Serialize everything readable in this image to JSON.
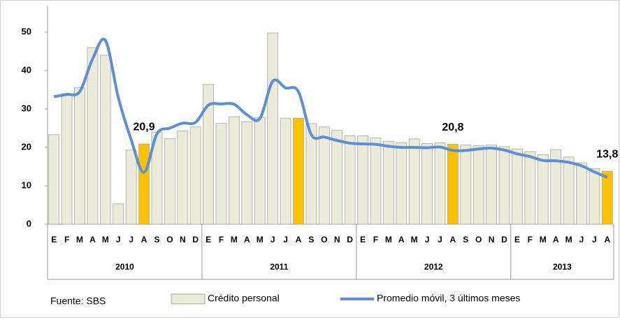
{
  "chart_data": {
    "type": "bar-line",
    "categories": [
      "E",
      "F",
      "M",
      "A",
      "M",
      "J",
      "J",
      "A",
      "S",
      "O",
      "N",
      "D",
      "E",
      "F",
      "M",
      "A",
      "M",
      "J",
      "J",
      "A",
      "S",
      "O",
      "N",
      "D",
      "E",
      "F",
      "M",
      "A",
      "M",
      "J",
      "J",
      "A",
      "S",
      "O",
      "N",
      "D",
      "E",
      "F",
      "M",
      "A",
      "M",
      "J",
      "J",
      "A"
    ],
    "groups": [
      {
        "label": "2010",
        "count": 12
      },
      {
        "label": "2011",
        "count": 12
      },
      {
        "label": "2012",
        "count": 12
      },
      {
        "label": "2013",
        "count": 8
      }
    ],
    "series": [
      {
        "name": "Crédito personal",
        "type": "bar",
        "color": "#ecebd9",
        "colors": [
          "#ecebd9",
          "#ecebd9",
          "#ecebd9",
          "#ecebd9",
          "#ecebd9",
          "#ecebd9",
          "#ecebd9",
          "#ffc000",
          "#ecebd9",
          "#ecebd9",
          "#ecebd9",
          "#ecebd9",
          "#ecebd9",
          "#ecebd9",
          "#ecebd9",
          "#ecebd9",
          "#ecebd9",
          "#ecebd9",
          "#ecebd9",
          "#ffc000",
          "#ecebd9",
          "#ecebd9",
          "#ecebd9",
          "#ecebd9",
          "#ecebd9",
          "#ecebd9",
          "#ecebd9",
          "#ecebd9",
          "#ecebd9",
          "#ecebd9",
          "#ecebd9",
          "#ffc000",
          "#ecebd9",
          "#ecebd9",
          "#ecebd9",
          "#ecebd9",
          "#ecebd9",
          "#ecebd9",
          "#ecebd9",
          "#ecebd9",
          "#ecebd9",
          "#ecebd9",
          "#ecebd9",
          "#ffc000"
        ],
        "values": [
          23.3,
          34,
          35.5,
          46,
          44,
          5.3,
          19.3,
          20.9,
          24,
          22.3,
          24.3,
          25.3,
          36.4,
          26.3,
          28,
          26.7,
          27.8,
          49.8,
          27.6,
          27.6,
          26.2,
          25.3,
          24.5,
          23,
          23,
          22.5,
          21.6,
          21.2,
          22.2,
          21,
          21.2,
          20.8,
          20.6,
          20.5,
          20.6,
          20.2,
          19.6,
          18.9,
          18.1,
          19.4,
          17.5,
          16,
          14.5,
          13.8
        ],
        "value_labels": [
          null,
          null,
          null,
          null,
          null,
          null,
          null,
          "20,9",
          null,
          null,
          null,
          null,
          null,
          null,
          null,
          null,
          null,
          null,
          null,
          null,
          null,
          null,
          null,
          null,
          null,
          null,
          null,
          null,
          null,
          null,
          null,
          "20,8",
          null,
          null,
          null,
          null,
          null,
          null,
          null,
          null,
          null,
          null,
          null,
          "13,8"
        ]
      },
      {
        "name": "Promedio móvil, 3 últimos meses",
        "type": "line",
        "color": "#5b8fd6",
        "values": [
          33.2,
          33.8,
          34.5,
          43,
          47.8,
          33,
          22,
          13.5,
          23.5,
          25,
          26.3,
          26.5,
          31,
          31.3,
          31.2,
          28.5,
          27.5,
          37.2,
          35.5,
          34.5,
          23.3,
          22.7,
          21.8,
          21.1,
          20.9,
          20.8,
          20.3,
          20,
          20,
          19.9,
          20.1,
          19.2,
          19.2,
          19.6,
          19.8,
          19.3,
          18.3,
          17.6,
          16.6,
          16.5,
          16.1,
          15.2,
          13.6,
          12.2
        ]
      }
    ],
    "ylim": [
      0,
      56
    ],
    "yticks": [
      0,
      10,
      20,
      30,
      40,
      50
    ],
    "grid": false,
    "note": "Fuente: SBS"
  }
}
